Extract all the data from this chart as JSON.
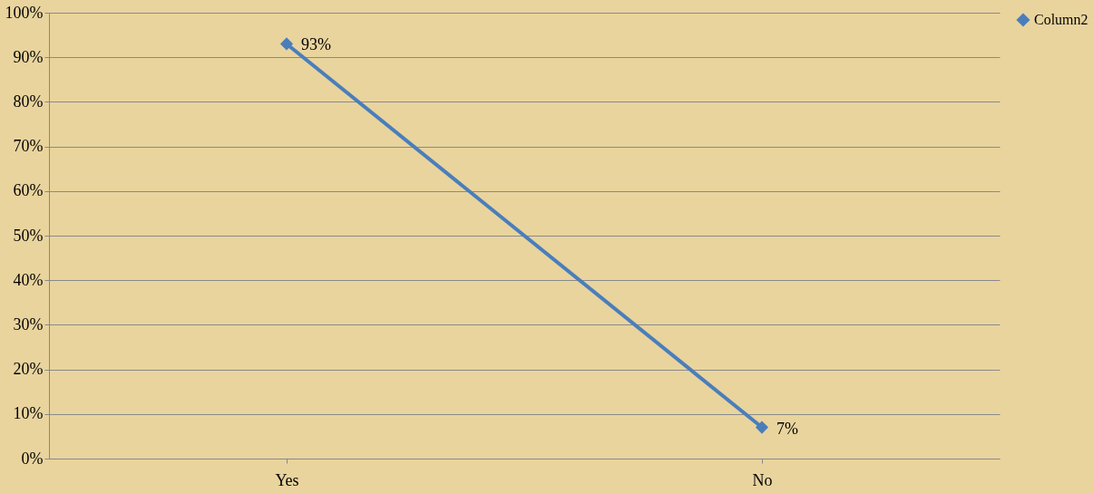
{
  "chart_data": {
    "type": "line",
    "categories": [
      "Yes",
      "No"
    ],
    "series": [
      {
        "name": "Column2",
        "color": "#4a7ebb",
        "values": [
          93,
          7
        ],
        "value_labels": [
          "93%",
          "7%"
        ]
      }
    ],
    "ylim": [
      0,
      100
    ],
    "yticks": [
      {
        "value": 0,
        "label": "0%"
      },
      {
        "value": 10,
        "label": "10%"
      },
      {
        "value": 20,
        "label": "20%"
      },
      {
        "value": 30,
        "label": "30%"
      },
      {
        "value": 40,
        "label": "40%"
      },
      {
        "value": 50,
        "label": "50%"
      },
      {
        "value": 60,
        "label": "60%"
      },
      {
        "value": 70,
        "label": "70%"
      },
      {
        "value": 80,
        "label": "80%"
      },
      {
        "value": 90,
        "label": "90%"
      },
      {
        "value": 100,
        "label": "100%"
      }
    ],
    "grid": "y",
    "legend": "right",
    "marker": "diamond",
    "line_style": "solid"
  }
}
